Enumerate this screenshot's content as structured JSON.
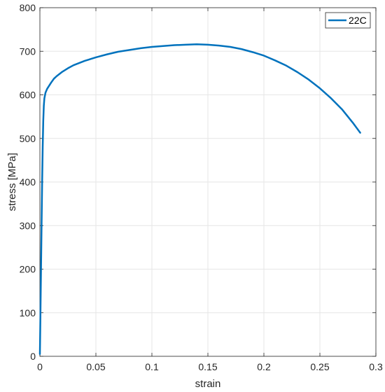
{
  "chart_data": {
    "type": "line",
    "xlabel": "strain",
    "ylabel": "stress [MPa]",
    "xlim": [
      0,
      0.3
    ],
    "ylim": [
      0,
      800
    ],
    "grid": true,
    "legend_position": "top-right",
    "x_ticks": [
      "0",
      "0.05",
      "0.1",
      "0.15",
      "0.2",
      "0.25",
      "0.3"
    ],
    "y_ticks": [
      "0",
      "100",
      "200",
      "300",
      "400",
      "500",
      "600",
      "700",
      "800"
    ],
    "series": [
      {
        "name": "22C",
        "color": "#0072BD",
        "x": [
          0,
          0.0005,
          0.001,
          0.0015,
          0.002,
          0.0025,
          0.003,
          0.0035,
          0.004,
          0.005,
          0.0065,
          0.008,
          0.01,
          0.0125,
          0.015,
          0.02,
          0.025,
          0.03,
          0.04,
          0.05,
          0.06,
          0.07,
          0.08,
          0.09,
          0.1,
          0.11,
          0.12,
          0.13,
          0.14,
          0.15,
          0.16,
          0.17,
          0.18,
          0.19,
          0.2,
          0.21,
          0.22,
          0.23,
          0.24,
          0.25,
          0.26,
          0.27,
          0.28,
          0.286
        ],
        "y": [
          5,
          100,
          200,
          300,
          400,
          480,
          540,
          575,
          592,
          605,
          614,
          620,
          628,
          637,
          643,
          653,
          661,
          668,
          678,
          686,
          693,
          699,
          703,
          707,
          710,
          712,
          714,
          715,
          716,
          715,
          713,
          710,
          705,
          698,
          690,
          679,
          667,
          652,
          635,
          615,
          592,
          566,
          534,
          513
        ]
      }
    ]
  }
}
